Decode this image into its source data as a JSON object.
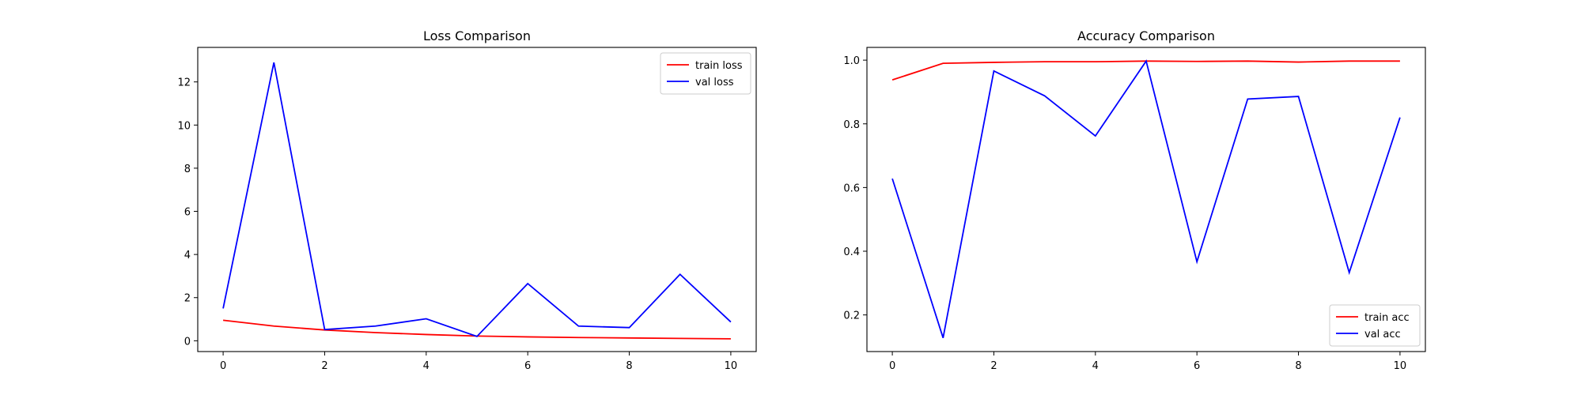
{
  "chart_data": [
    {
      "type": "line",
      "title": "Loss Comparison",
      "xlabel": "",
      "ylabel": "",
      "xlim": [
        -0.5,
        10.5
      ],
      "ylim": [
        -0.5,
        13.6
      ],
      "xticks": [
        0,
        2,
        4,
        6,
        8,
        10
      ],
      "yticks": [
        0,
        2,
        4,
        6,
        8,
        10,
        12
      ],
      "grid": false,
      "legend_position": "top-right",
      "x": [
        0,
        1,
        2,
        3,
        4,
        5,
        6,
        7,
        8,
        9,
        10
      ],
      "series": [
        {
          "name": "train loss",
          "color": "#ff0000",
          "values": [
            0.95,
            0.68,
            0.5,
            0.38,
            0.29,
            0.22,
            0.18,
            0.15,
            0.13,
            0.11,
            0.09
          ]
        },
        {
          "name": "val loss",
          "color": "#0000ff",
          "values": [
            1.5,
            12.9,
            0.52,
            0.68,
            1.02,
            0.2,
            2.65,
            0.68,
            0.61,
            3.08,
            0.87
          ]
        }
      ]
    },
    {
      "type": "line",
      "title": "Accuracy Comparison",
      "xlabel": "",
      "ylabel": "",
      "xlim": [
        -0.5,
        10.5
      ],
      "ylim": [
        0.085,
        1.04
      ],
      "xticks": [
        0,
        2,
        4,
        6,
        8,
        10
      ],
      "yticks": [
        0.2,
        0.4,
        0.6,
        0.8,
        1.0
      ],
      "ytick_labels": [
        "0.2",
        "0.4",
        "0.6",
        "0.8",
        "1.0"
      ],
      "grid": false,
      "legend_position": "bottom-right",
      "x": [
        0,
        1,
        2,
        3,
        4,
        5,
        6,
        7,
        8,
        9,
        10
      ],
      "series": [
        {
          "name": "train acc",
          "color": "#ff0000",
          "values": [
            0.938,
            0.99,
            0.993,
            0.995,
            0.995,
            0.997,
            0.996,
            0.997,
            0.994,
            0.997,
            0.997
          ]
        },
        {
          "name": "val acc",
          "color": "#0000ff",
          "values": [
            0.628,
            0.128,
            0.966,
            0.888,
            0.762,
            0.997,
            0.367,
            0.878,
            0.886,
            0.333,
            0.82
          ]
        }
      ]
    }
  ]
}
